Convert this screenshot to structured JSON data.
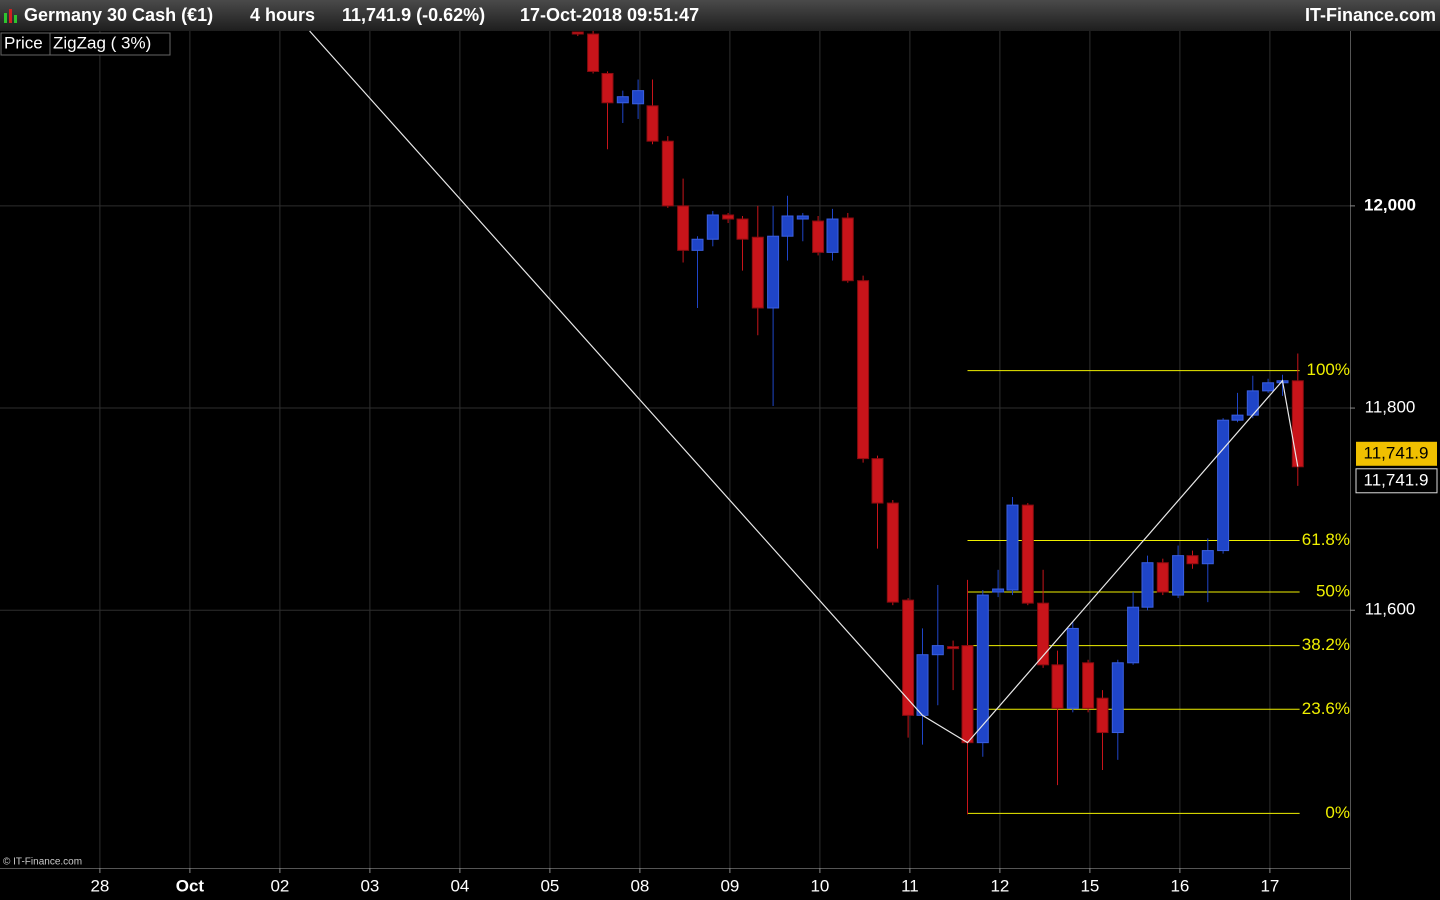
{
  "chart_data": {
    "type": "candlestick",
    "title": "Germany 30 Cash (€1)",
    "timeframe": "4 hours",
    "quote": "11,741.9 (-0.62%)",
    "timestamp": "17-Oct-2018 09:51:47",
    "source": "IT-Finance.com",
    "copyright": "© IT-Finance.com",
    "legend": [
      "Price",
      "ZigZag ( 3%)"
    ],
    "up_color": "#1f45c8",
    "down_color": "#c8141a",
    "x": [
      5.31,
      5.48,
      5.64,
      5.81,
      5.98,
      6.14,
      6.31,
      6.48,
      6.64,
      6.81,
      6.98,
      7.14,
      7.31,
      7.48,
      7.64,
      7.81,
      7.98,
      8.14,
      8.31,
      8.48,
      8.64,
      8.81,
      8.98,
      9.14,
      9.31,
      9.48,
      9.64,
      9.81,
      9.98,
      10.14,
      10.31,
      10.48,
      10.64,
      10.81,
      10.98,
      11.14,
      11.31,
      11.48,
      11.64,
      11.81,
      11.98,
      12.14,
      12.31,
      12.48,
      12.64,
      12.81,
      12.98,
      13.14,
      13.31
    ],
    "open": [
      12172,
      12170,
      12131,
      12102,
      12101,
      12099,
      12064,
      12000,
      11956,
      11967,
      11991,
      11987,
      11969,
      11899,
      11970,
      11987,
      11985,
      11954,
      11988,
      11926,
      11750,
      11706,
      11610,
      11496,
      11556,
      11564,
      11565,
      11469,
      11618,
      11620,
      11704,
      11607,
      11546,
      11503,
      11548,
      11513,
      11479,
      11548,
      11603,
      11647,
      11615,
      11654,
      11646,
      11659,
      11788,
      11793,
      11817,
      11825,
      11827
    ],
    "high": [
      12172,
      12173,
      12133,
      12114,
      12125,
      12125,
      12069,
      12027,
      11970,
      11995,
      11993,
      11990,
      12000,
      12000,
      12010,
      11993,
      11990,
      11997,
      11993,
      11931,
      11753,
      11709,
      11612,
      11582,
      11625,
      11570,
      11630,
      11620,
      11640,
      11712,
      11706,
      11640,
      11560,
      11588,
      11551,
      11521,
      11551,
      11618,
      11654,
      11651,
      11664,
      11659,
      11671,
      11790,
      11815,
      11832,
      11829,
      11833,
      11854
    ],
    "low": [
      12168,
      12131,
      12056,
      12082,
      12086,
      12061,
      11998,
      11944,
      11899,
      11960,
      11983,
      11936,
      11872,
      11802,
      11946,
      11965,
      11951,
      11946,
      11924,
      11746,
      11661,
      11605,
      11474,
      11467,
      11506,
      11521,
      11398,
      11455,
      11613,
      11615,
      11605,
      11543,
      11427,
      11499,
      11499,
      11442,
      11452,
      11546,
      11600,
      11615,
      11612,
      11641,
      11608,
      11656,
      11786,
      11790,
      11815,
      11812,
      11723
    ],
    "close": [
      12170,
      12133,
      12102,
      12108,
      12114,
      12064,
      12000,
      11956,
      11967,
      11991,
      11987,
      11967,
      11899,
      11970,
      11990,
      11990,
      11954,
      11987,
      11926,
      11750,
      11706,
      11608,
      11496,
      11556,
      11565,
      11562,
      11469,
      11615,
      11621,
      11704,
      11607,
      11546,
      11503,
      11582,
      11503,
      11479,
      11548,
      11603,
      11647,
      11618,
      11654,
      11646,
      11659,
      11788,
      11793,
      11817,
      11825,
      11827,
      11741.9
    ],
    "zigzag": {
      "color": "#e8e8e8",
      "x": [
        2.33,
        9.14,
        9.64,
        13.14,
        13.31
      ],
      "y": [
        12173,
        11496,
        11469,
        11827,
        11742
      ]
    },
    "fib": {
      "color": "#f0f000",
      "x": [
        9.64,
        13.33
      ],
      "levels": [
        {
          "value": 11837,
          "label": "100%"
        },
        {
          "value": 11669,
          "label": "61.8%"
        },
        {
          "value": 11618,
          "label": "50%"
        },
        {
          "value": 11565,
          "label": "38.2%"
        },
        {
          "value": 11502,
          "label": "23.6%"
        },
        {
          "value": 11399,
          "label": "0%"
        }
      ]
    },
    "last_price": {
      "value": 11741.9,
      "label": "11,741.9"
    },
    "xlim": [
      -1.11,
      13.89
    ],
    "ylim": [
      11345,
      12173
    ],
    "xticks": [
      {
        "value": 0,
        "label": "28"
      },
      {
        "value": 1,
        "label": "Oct"
      },
      {
        "value": 2,
        "label": "02"
      },
      {
        "value": 3,
        "label": "03"
      },
      {
        "value": 4,
        "label": "04"
      },
      {
        "value": 5,
        "label": "05"
      },
      {
        "value": 6,
        "label": "08"
      },
      {
        "value": 7,
        "label": "09"
      },
      {
        "value": 8,
        "label": "10"
      },
      {
        "value": 9,
        "label": "11"
      },
      {
        "value": 10,
        "label": "12"
      },
      {
        "value": 11,
        "label": "15"
      },
      {
        "value": 12,
        "label": "16"
      },
      {
        "value": 13,
        "label": "17"
      }
    ],
    "yticks": [
      {
        "value": 11600,
        "label": "11,600"
      },
      {
        "value": 11800,
        "label": "11,800"
      },
      {
        "value": 12000,
        "label": "12,000"
      }
    ],
    "grid": true
  }
}
